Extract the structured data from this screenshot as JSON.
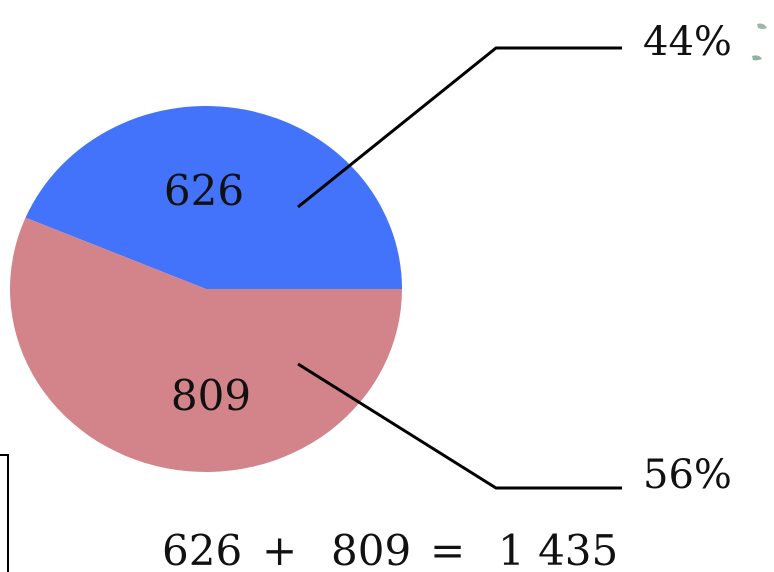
{
  "chart_data": {
    "type": "pie",
    "slices": [
      {
        "value": 626,
        "label": "626",
        "percent_label": "44%",
        "color": "#4273fa"
      },
      {
        "value": 809,
        "label": "809",
        "percent_label": "56%",
        "color": "#d3848a"
      }
    ],
    "equation": {
      "a": "626",
      "plus": "+",
      "b": "809",
      "equals": "=",
      "total": "1 435"
    }
  }
}
